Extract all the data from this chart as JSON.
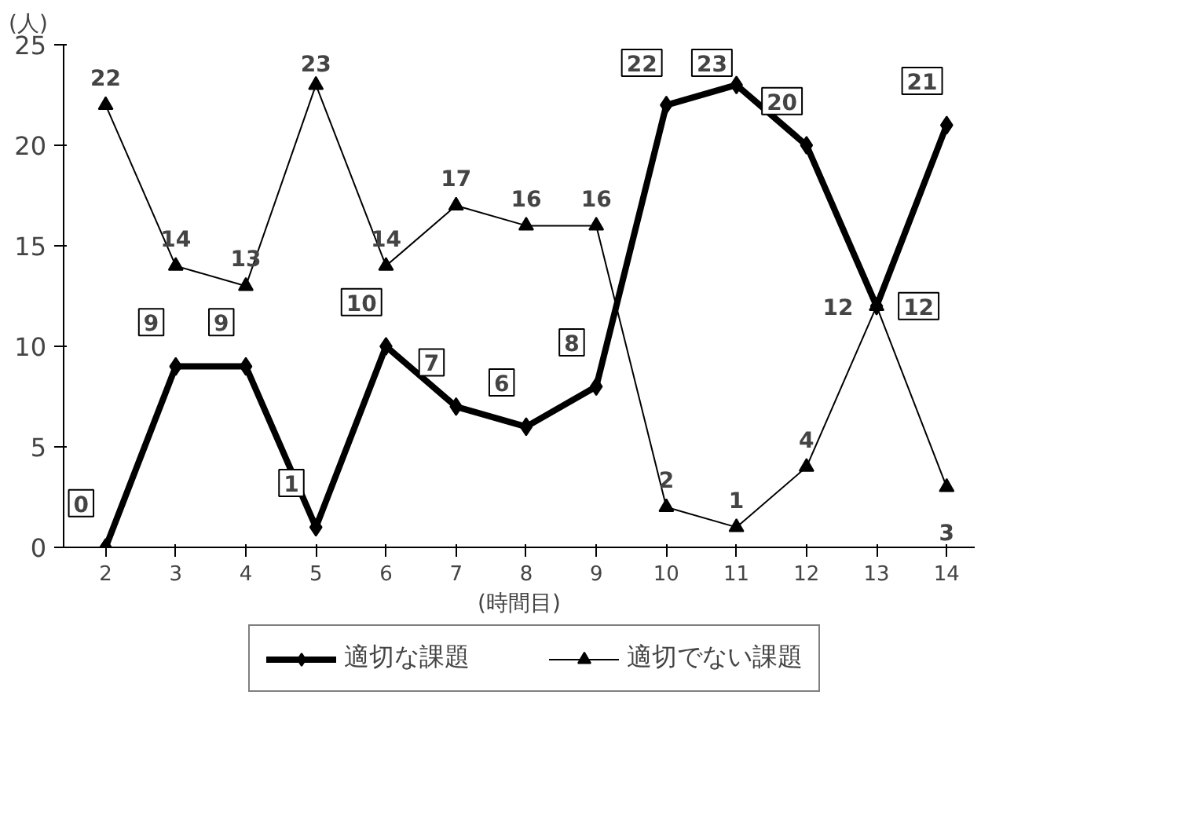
{
  "chart_data": {
    "type": "line",
    "ylabel": "(人)",
    "xlabel": "(時間目)",
    "categories": [
      "2",
      "3",
      "4",
      "5",
      "6",
      "7",
      "8",
      "9",
      "10",
      "11",
      "12",
      "13",
      "14"
    ],
    "series": [
      {
        "name": "適切な課題",
        "color": "#000000",
        "marker": "diamond",
        "values": [
          0,
          9,
          9,
          1,
          10,
          7,
          6,
          8,
          22,
          23,
          20,
          12,
          21
        ]
      },
      {
        "name": "適切でない課題",
        "color": "#000000",
        "marker": "triangle",
        "values": [
          22,
          14,
          13,
          23,
          14,
          17,
          16,
          16,
          2,
          1,
          4,
          12,
          3
        ]
      }
    ],
    "ylim": [
      0,
      25
    ],
    "yticks": [
      0,
      5,
      10,
      15,
      20,
      25
    ],
    "grid": false,
    "legend": "bottom",
    "data_labels": true
  }
}
